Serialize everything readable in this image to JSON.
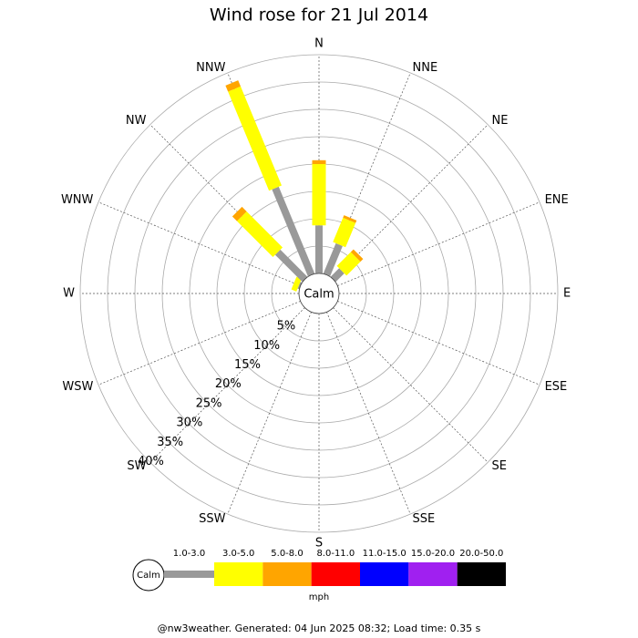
{
  "chart_data": {
    "type": "windrose",
    "title": "Wind rose for 21 Jul 2014",
    "categories": [
      "N",
      "NNE",
      "NE",
      "ENE",
      "E",
      "ESE",
      "SE",
      "SSE",
      "S",
      "SSW",
      "SW",
      "WSW",
      "W",
      "WNW",
      "NW",
      "NNW"
    ],
    "series": [
      {
        "name": "1.0-3.0",
        "color": "#999999",
        "values": [
          8.8,
          6,
          2.2,
          0,
          0,
          0,
          0,
          0,
          0,
          0,
          0,
          0,
          0,
          0.3,
          7,
          17.2
        ]
      },
      {
        "name": "3.0-5.0",
        "color": "#ffff00",
        "values": [
          11.2,
          4.8,
          3.6,
          0,
          0,
          0,
          0,
          0,
          0,
          0,
          0,
          0,
          0,
          1,
          9.3,
          19.6
        ]
      },
      {
        "name": "5.0-8.0",
        "color": "#ffa500",
        "values": [
          0.7,
          0.5,
          0.7,
          0,
          0,
          0,
          0,
          0,
          0,
          0,
          0,
          0,
          0,
          0,
          1.2,
          1.2
        ]
      },
      {
        "name": "8.0-11.0",
        "color": "#ff0000",
        "values": [
          0,
          0,
          0,
          0,
          0,
          0,
          0,
          0,
          0,
          0,
          0,
          0,
          0,
          0,
          0,
          0
        ]
      },
      {
        "name": "11.0-15.0",
        "color": "#0000ff",
        "values": [
          0,
          0,
          0,
          0,
          0,
          0,
          0,
          0,
          0,
          0,
          0,
          0,
          0,
          0,
          0,
          0
        ]
      },
      {
        "name": "15.0-20.0",
        "color": "#a020f0",
        "values": [
          0,
          0,
          0,
          0,
          0,
          0,
          0,
          0,
          0,
          0,
          0,
          0,
          0,
          0,
          0,
          0
        ]
      },
      {
        "name": "20.0-50.0",
        "color": "#000000",
        "values": [
          0,
          0,
          0,
          0,
          0,
          0,
          0,
          0,
          0,
          0,
          0,
          0,
          0,
          0,
          0,
          0
        ]
      }
    ],
    "rlim": [
      0,
      40
    ],
    "rticks": [
      {
        "value": 5,
        "label": "5%"
      },
      {
        "value": 10,
        "label": "10%"
      },
      {
        "value": 15,
        "label": "15%"
      },
      {
        "value": 20,
        "label": "20%"
      },
      {
        "value": 25,
        "label": "25%"
      },
      {
        "value": 30,
        "label": "30%"
      },
      {
        "value": 35,
        "label": "35%"
      },
      {
        "value": 40,
        "label": "40%"
      }
    ],
    "calm_label": "Calm",
    "unit": "mph",
    "footer": "@nw3weather. Generated: 04 Jun 2025 08:32; Load time: 0.35 s"
  }
}
